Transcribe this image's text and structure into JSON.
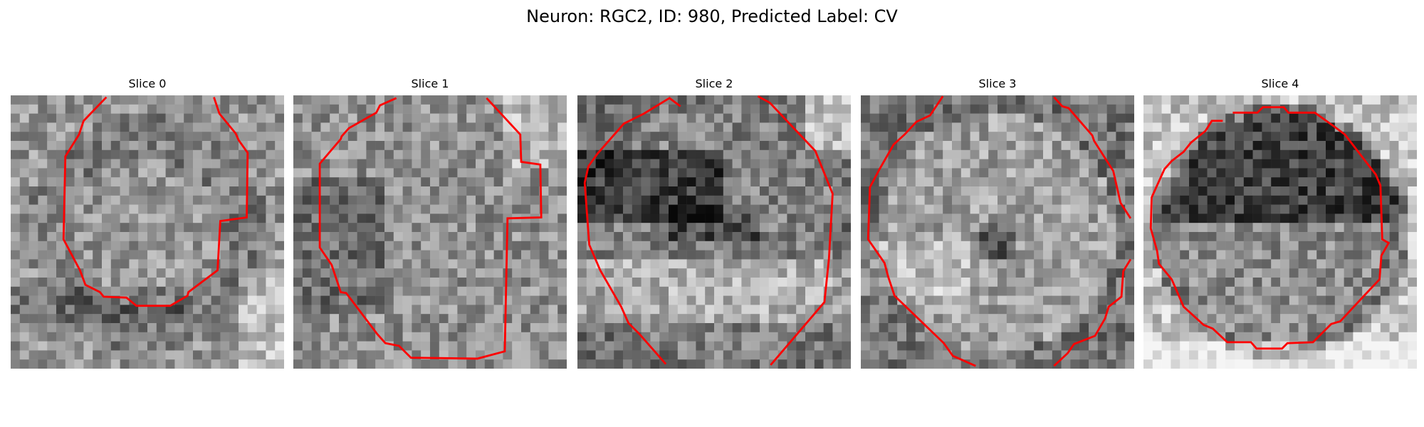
{
  "figure": {
    "title": "Neuron: RGC2, ID: 980, Predicted Label: CV"
  },
  "panels": [
    {
      "title": "Slice 0",
      "image": "grayscale-em-crop",
      "seed": 11,
      "pattern": "ring"
    },
    {
      "title": "Slice 1",
      "image": "grayscale-em-crop",
      "seed": 23,
      "pattern": "noisy"
    },
    {
      "title": "Slice 2",
      "image": "grayscale-em-crop",
      "seed": 37,
      "pattern": "dark-band"
    },
    {
      "title": "Slice 3",
      "image": "grayscale-em-crop",
      "seed": 51,
      "pattern": "bright-center"
    },
    {
      "title": "Slice 4",
      "image": "grayscale-em-crop",
      "seed": 67,
      "pattern": "dark-top"
    }
  ],
  "colors": {
    "contour": "#ff0000",
    "background": "#ffffff"
  }
}
